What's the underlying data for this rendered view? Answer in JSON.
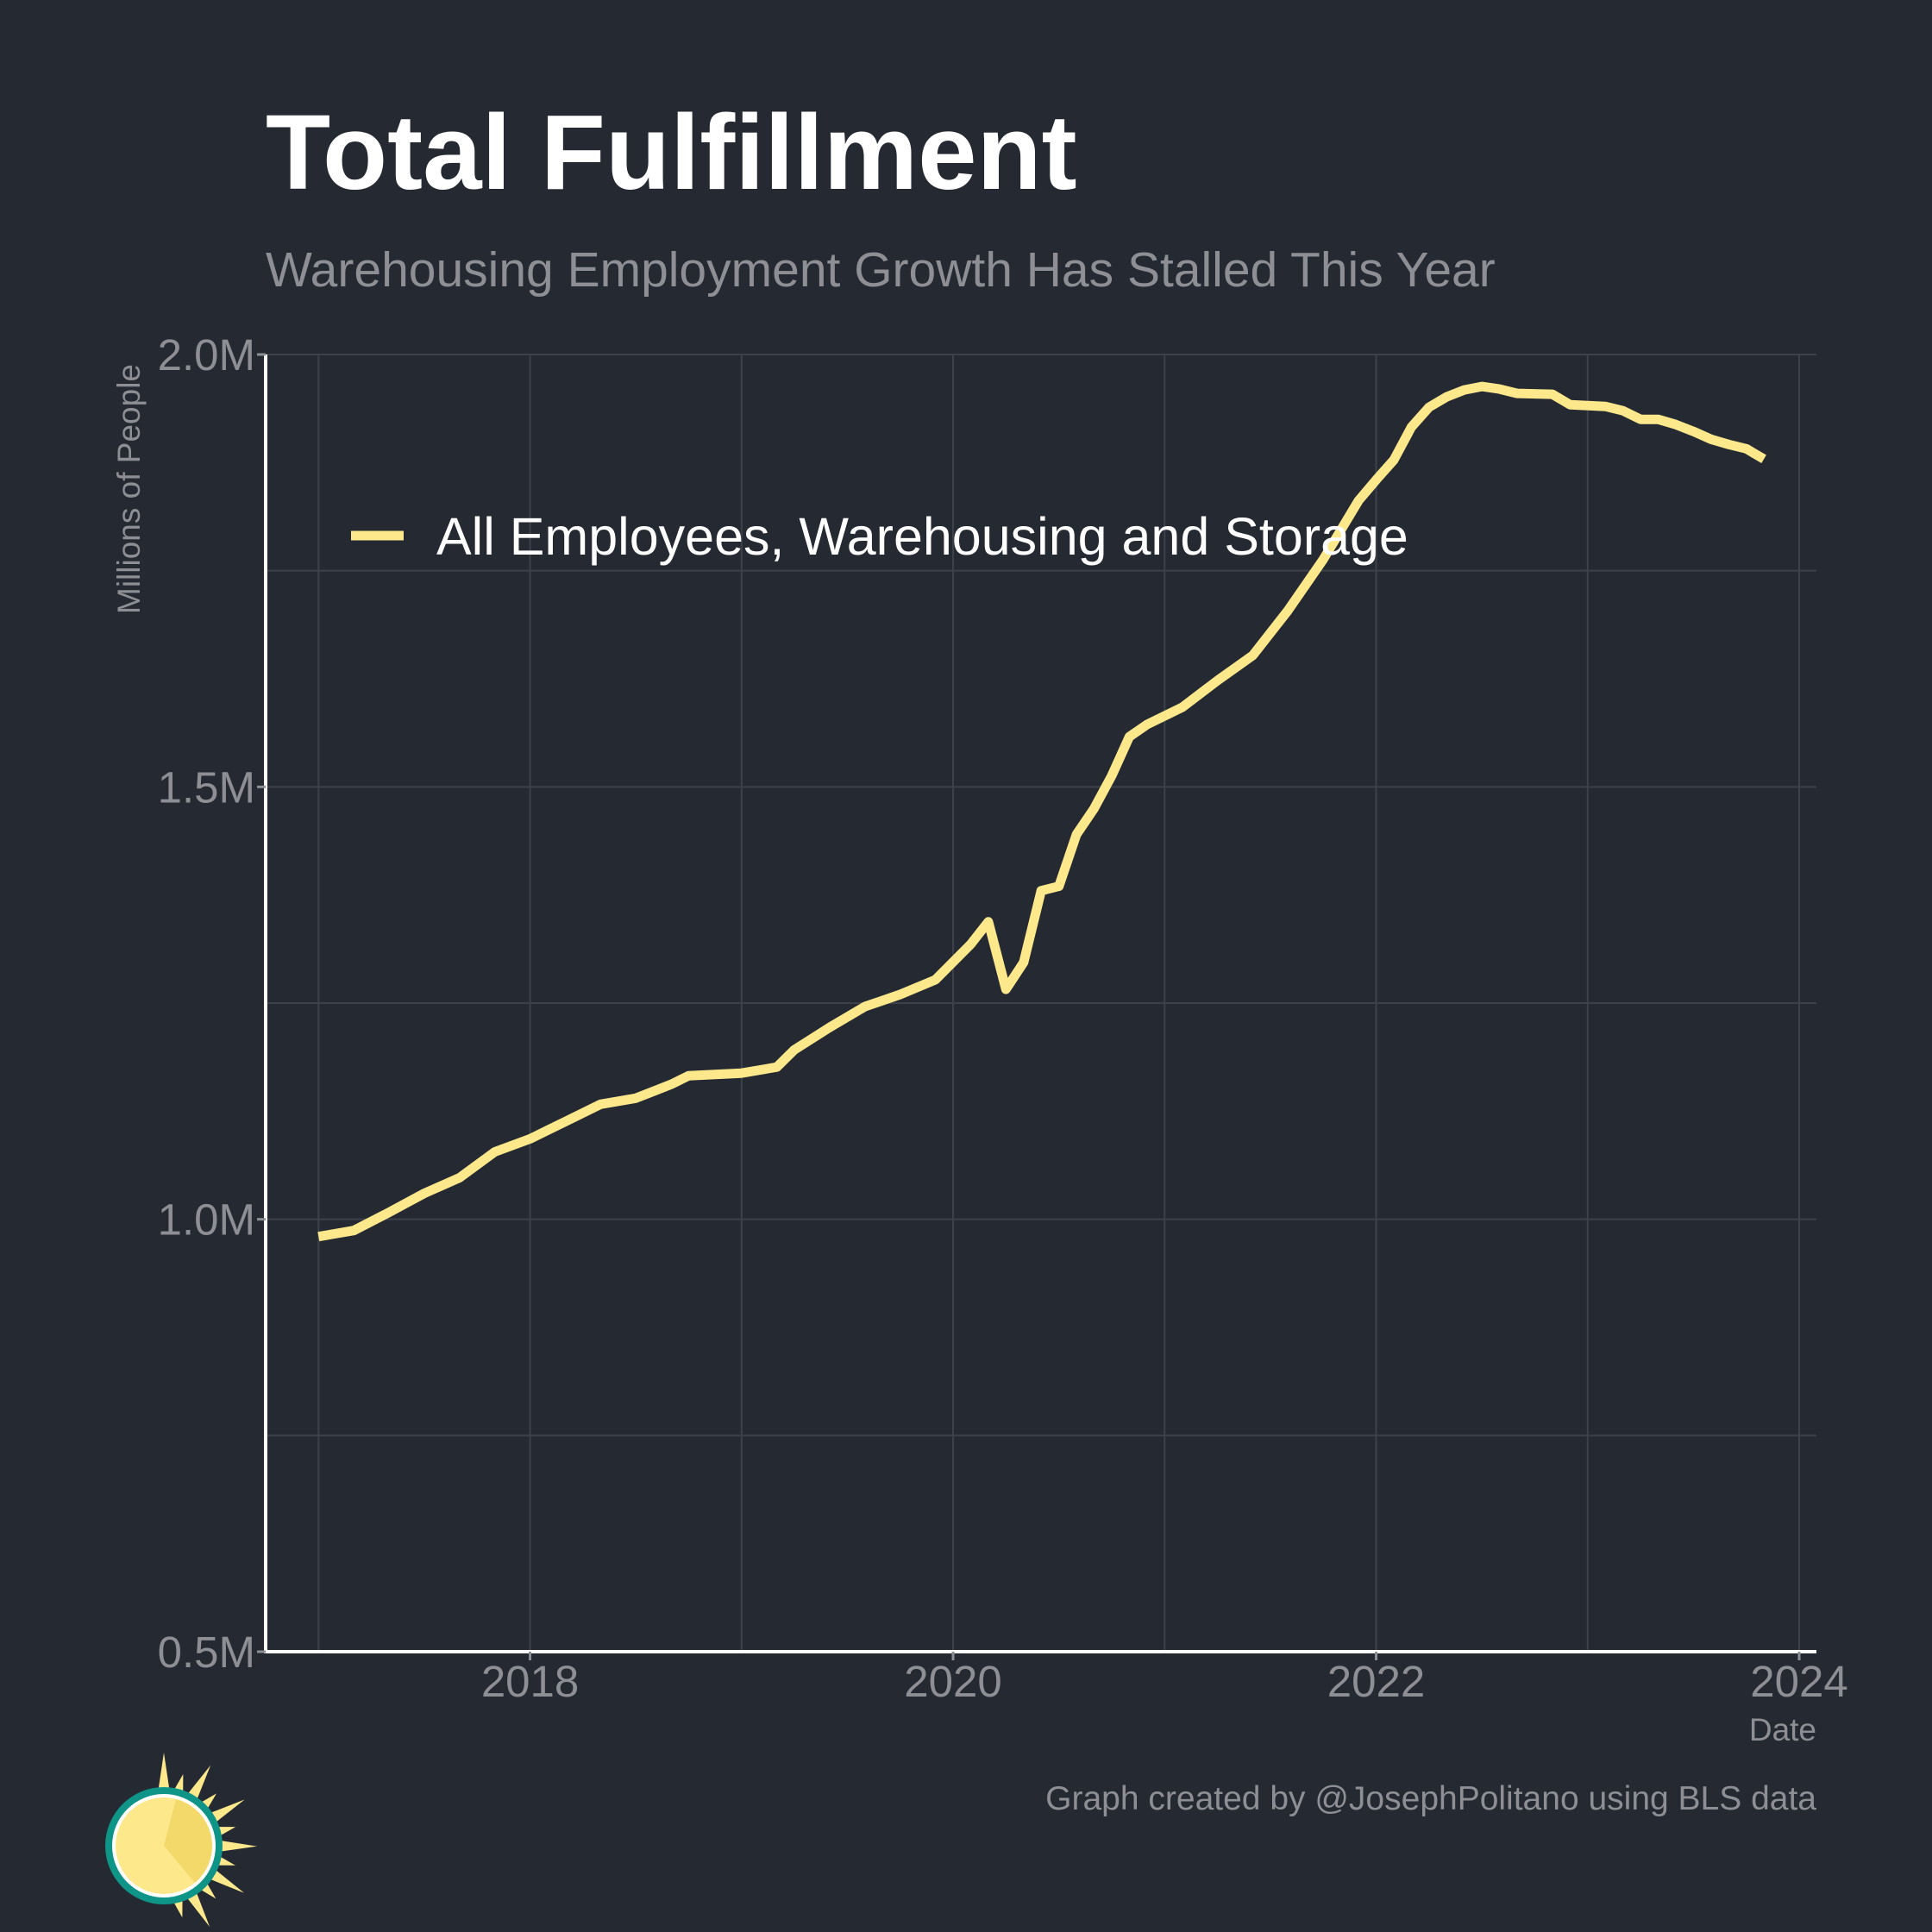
{
  "title": "Total Fulfillment",
  "subtitle": "Warehousing Employment Growth Has Stalled This Year",
  "caption": "Graph created by @JosephPolitano using BLS data",
  "colors": {
    "background": "#252932",
    "line": "#fde98c",
    "grid": "#3d414a",
    "axis": "#ffffff",
    "muted_text": "#8d8f94",
    "logo_sun": "#fde98c",
    "logo_ring": "#0f9488"
  },
  "chart_data": {
    "type": "line",
    "title": "Total Fulfillment",
    "subtitle": "Warehousing Employment Growth Has Stalled This Year",
    "xlabel": "Date",
    "ylabel": "Millions of People",
    "xlim": [
      "2016-10",
      "2024-01"
    ],
    "ylim": [
      0.5,
      2.0
    ],
    "y_ticks": [
      {
        "value": 0.5,
        "label": "0.5M"
      },
      {
        "value": 1.0,
        "label": "1.0M"
      },
      {
        "value": 1.5,
        "label": "1.5M"
      },
      {
        "value": 2.0,
        "label": "2.0M"
      }
    ],
    "y_minor_gridlines": [
      0.75,
      1.25,
      1.75
    ],
    "x_ticks": [
      {
        "value": "2018-01",
        "label": "2018"
      },
      {
        "value": "2020-01",
        "label": "2020"
      },
      {
        "value": "2022-01",
        "label": "2022"
      },
      {
        "value": "2024-01",
        "label": "2024"
      }
    ],
    "x_minor_gridlines": [
      "2017-01",
      "2019-01",
      "2021-01",
      "2023-01"
    ],
    "grid": true,
    "legend_position": "top-left",
    "series": [
      {
        "name": "All Employees, Warehousing and Storage",
        "color": "#fde98c",
        "points": [
          [
            "2017-01",
            0.98
          ],
          [
            "2017-03",
            0.987
          ],
          [
            "2017-05",
            1.008
          ],
          [
            "2017-07",
            1.03
          ],
          [
            "2017-09",
            1.048
          ],
          [
            "2017-11",
            1.078
          ],
          [
            "2018-01",
            1.093
          ],
          [
            "2018-03",
            1.113
          ],
          [
            "2018-05",
            1.133
          ],
          [
            "2018-07",
            1.14
          ],
          [
            "2018-09",
            1.156
          ],
          [
            "2018-10",
            1.166
          ],
          [
            "2019-01",
            1.169
          ],
          [
            "2019-03",
            1.176
          ],
          [
            "2019-04",
            1.196
          ],
          [
            "2019-06",
            1.222
          ],
          [
            "2019-08",
            1.246
          ],
          [
            "2019-10",
            1.26
          ],
          [
            "2019-12",
            1.277
          ],
          [
            "2020-02",
            1.318
          ],
          [
            "2020-03",
            1.344
          ],
          [
            "2020-04",
            1.266
          ],
          [
            "2020-05",
            1.297
          ],
          [
            "2020-06",
            1.38
          ],
          [
            "2020-07",
            1.385
          ],
          [
            "2020-08",
            1.445
          ],
          [
            "2020-09",
            1.475
          ],
          [
            "2020-10",
            1.513
          ],
          [
            "2020-11",
            1.558
          ],
          [
            "2020-12",
            1.572
          ],
          [
            "2021-02",
            1.592
          ],
          [
            "2021-04",
            1.623
          ],
          [
            "2021-06",
            1.652
          ],
          [
            "2021-08",
            1.704
          ],
          [
            "2021-10",
            1.763
          ],
          [
            "2021-12",
            1.831
          ],
          [
            "2022-01",
            1.855
          ],
          [
            "2022-02",
            1.878
          ],
          [
            "2022-03",
            1.916
          ],
          [
            "2022-04",
            1.939
          ],
          [
            "2022-05",
            1.951
          ],
          [
            "2022-06",
            1.959
          ],
          [
            "2022-07",
            1.963
          ],
          [
            "2022-08",
            1.96
          ],
          [
            "2022-09",
            1.955
          ],
          [
            "2022-11",
            1.954
          ],
          [
            "2022-12",
            1.942
          ],
          [
            "2023-02",
            1.94
          ],
          [
            "2023-03",
            1.935
          ],
          [
            "2023-04",
            1.925
          ],
          [
            "2023-05",
            1.925
          ],
          [
            "2023-06",
            1.919
          ],
          [
            "2023-07",
            1.911
          ],
          [
            "2023-08",
            1.902
          ],
          [
            "2023-09",
            1.896
          ],
          [
            "2023-10",
            1.891
          ],
          [
            "2023-11",
            1.879
          ]
        ]
      }
    ]
  }
}
